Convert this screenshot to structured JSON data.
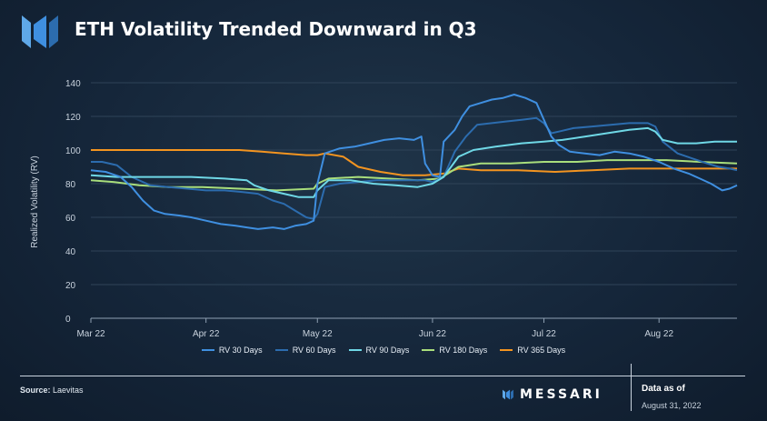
{
  "header": {
    "title": "ETH Volatility Trended Downward in Q3"
  },
  "footer": {
    "source_label": "Source:",
    "source_value": "Laevitas",
    "brand": "MESSARI",
    "asof_label": "Data as of",
    "asof_date": "August 31, 2022"
  },
  "colors": {
    "rv30": "#3f8fe0",
    "rv60": "#2c6cae",
    "rv90": "#6fd8e6",
    "rv180": "#a9de7c",
    "rv365": "#f39420"
  },
  "chart_data": {
    "type": "line",
    "ylabel": "Realized Volatility (RV)",
    "xlabel": "",
    "ylim": [
      0,
      140
    ],
    "yticks": [
      0,
      20,
      40,
      60,
      80,
      100,
      120,
      140
    ],
    "xlim": [
      "2022-03-01",
      "2022-08-22"
    ],
    "xticks": [
      {
        "date": "2022-03-01",
        "label": "Mar 22"
      },
      {
        "date": "2022-04-01",
        "label": "Apr 22"
      },
      {
        "date": "2022-05-01",
        "label": "May 22"
      },
      {
        "date": "2022-06-01",
        "label": "Jun 22"
      },
      {
        "date": "2022-07-01",
        "label": "Jul 22"
      },
      {
        "date": "2022-08-01",
        "label": "Aug 22"
      }
    ],
    "grid": true,
    "legend": "bottom",
    "series": [
      {
        "name": "RV 30 Days",
        "key": "rv30",
        "points": [
          [
            "2022-03-01",
            88
          ],
          [
            "2022-03-05",
            87
          ],
          [
            "2022-03-09",
            84
          ],
          [
            "2022-03-12",
            78
          ],
          [
            "2022-03-15",
            70
          ],
          [
            "2022-03-18",
            64
          ],
          [
            "2022-03-21",
            62
          ],
          [
            "2022-03-25",
            61
          ],
          [
            "2022-03-28",
            60
          ],
          [
            "2022-04-01",
            58
          ],
          [
            "2022-04-05",
            56
          ],
          [
            "2022-04-09",
            55
          ],
          [
            "2022-04-12",
            54
          ],
          [
            "2022-04-15",
            53
          ],
          [
            "2022-04-19",
            54
          ],
          [
            "2022-04-22",
            53
          ],
          [
            "2022-04-25",
            55
          ],
          [
            "2022-04-28",
            56
          ],
          [
            "2022-04-30",
            58
          ],
          [
            "2022-05-01",
            80
          ],
          [
            "2022-05-03",
            98
          ],
          [
            "2022-05-07",
            101
          ],
          [
            "2022-05-11",
            102
          ],
          [
            "2022-05-15",
            104
          ],
          [
            "2022-05-19",
            106
          ],
          [
            "2022-05-23",
            107
          ],
          [
            "2022-05-27",
            106
          ],
          [
            "2022-05-29",
            108
          ],
          [
            "2022-05-30",
            92
          ],
          [
            "2022-06-01",
            85
          ],
          [
            "2022-06-03",
            84
          ],
          [
            "2022-06-04",
            105
          ],
          [
            "2022-06-07",
            112
          ],
          [
            "2022-06-09",
            120
          ],
          [
            "2022-06-11",
            126
          ],
          [
            "2022-06-14",
            128
          ],
          [
            "2022-06-17",
            130
          ],
          [
            "2022-06-20",
            131
          ],
          [
            "2022-06-23",
            133
          ],
          [
            "2022-06-26",
            131
          ],
          [
            "2022-06-29",
            128
          ],
          [
            "2022-07-01",
            118
          ],
          [
            "2022-07-03",
            108
          ],
          [
            "2022-07-05",
            103
          ],
          [
            "2022-07-08",
            99
          ],
          [
            "2022-07-12",
            98
          ],
          [
            "2022-07-16",
            97
          ],
          [
            "2022-07-20",
            99
          ],
          [
            "2022-07-24",
            98
          ],
          [
            "2022-07-28",
            96
          ],
          [
            "2022-08-01",
            93
          ],
          [
            "2022-08-05",
            89
          ],
          [
            "2022-08-09",
            86
          ],
          [
            "2022-08-12",
            83
          ],
          [
            "2022-08-15",
            80
          ],
          [
            "2022-08-18",
            76
          ],
          [
            "2022-08-20",
            77
          ],
          [
            "2022-08-22",
            79
          ]
        ]
      },
      {
        "name": "RV 60 Days",
        "key": "rv60",
        "points": [
          [
            "2022-03-01",
            93
          ],
          [
            "2022-03-04",
            93
          ],
          [
            "2022-03-08",
            91
          ],
          [
            "2022-03-12",
            84
          ],
          [
            "2022-03-17",
            79
          ],
          [
            "2022-03-22",
            78
          ],
          [
            "2022-03-27",
            77
          ],
          [
            "2022-04-01",
            76
          ],
          [
            "2022-04-06",
            76
          ],
          [
            "2022-04-11",
            75
          ],
          [
            "2022-04-15",
            74
          ],
          [
            "2022-04-19",
            70
          ],
          [
            "2022-04-22",
            68
          ],
          [
            "2022-04-25",
            64
          ],
          [
            "2022-04-28",
            60
          ],
          [
            "2022-04-30",
            59
          ],
          [
            "2022-05-01",
            62
          ],
          [
            "2022-05-03",
            78
          ],
          [
            "2022-05-07",
            80
          ],
          [
            "2022-05-12",
            81
          ],
          [
            "2022-05-17",
            82
          ],
          [
            "2022-05-22",
            82
          ],
          [
            "2022-05-27",
            82
          ],
          [
            "2022-05-30",
            82
          ],
          [
            "2022-06-01",
            81
          ],
          [
            "2022-06-04",
            84
          ],
          [
            "2022-06-07",
            99
          ],
          [
            "2022-06-10",
            108
          ],
          [
            "2022-06-13",
            115
          ],
          [
            "2022-06-17",
            116
          ],
          [
            "2022-06-21",
            117
          ],
          [
            "2022-06-25",
            118
          ],
          [
            "2022-06-29",
            119
          ],
          [
            "2022-07-01",
            116
          ],
          [
            "2022-07-03",
            110
          ],
          [
            "2022-07-05",
            111
          ],
          [
            "2022-07-09",
            113
          ],
          [
            "2022-07-14",
            114
          ],
          [
            "2022-07-19",
            115
          ],
          [
            "2022-07-24",
            116
          ],
          [
            "2022-07-29",
            116
          ],
          [
            "2022-07-31",
            114
          ],
          [
            "2022-08-02",
            105
          ],
          [
            "2022-08-06",
            98
          ],
          [
            "2022-08-10",
            95
          ],
          [
            "2022-08-14",
            92
          ],
          [
            "2022-08-17",
            90
          ],
          [
            "2022-08-20",
            89
          ],
          [
            "2022-08-22",
            88
          ]
        ]
      },
      {
        "name": "RV 90 Days",
        "key": "rv90",
        "points": [
          [
            "2022-03-01",
            85
          ],
          [
            "2022-03-08",
            84
          ],
          [
            "2022-03-18",
            84
          ],
          [
            "2022-03-28",
            84
          ],
          [
            "2022-04-06",
            83
          ],
          [
            "2022-04-12",
            82
          ],
          [
            "2022-04-14",
            79
          ],
          [
            "2022-04-18",
            76
          ],
          [
            "2022-04-22",
            74
          ],
          [
            "2022-04-26",
            72
          ],
          [
            "2022-04-30",
            72
          ],
          [
            "2022-05-01",
            76
          ],
          [
            "2022-05-04",
            82
          ],
          [
            "2022-05-10",
            82
          ],
          [
            "2022-05-16",
            80
          ],
          [
            "2022-05-22",
            79
          ],
          [
            "2022-05-28",
            78
          ],
          [
            "2022-06-01",
            80
          ],
          [
            "2022-06-04",
            84
          ],
          [
            "2022-06-08",
            96
          ],
          [
            "2022-06-12",
            100
          ],
          [
            "2022-06-18",
            102
          ],
          [
            "2022-06-25",
            104
          ],
          [
            "2022-07-01",
            105
          ],
          [
            "2022-07-06",
            106
          ],
          [
            "2022-07-12",
            108
          ],
          [
            "2022-07-18",
            110
          ],
          [
            "2022-07-24",
            112
          ],
          [
            "2022-07-29",
            113
          ],
          [
            "2022-07-31",
            111
          ],
          [
            "2022-08-02",
            106
          ],
          [
            "2022-08-06",
            104
          ],
          [
            "2022-08-11",
            104
          ],
          [
            "2022-08-16",
            105
          ],
          [
            "2022-08-22",
            105
          ]
        ]
      },
      {
        "name": "RV 180 Days",
        "key": "rv180",
        "points": [
          [
            "2022-03-01",
            82
          ],
          [
            "2022-03-07",
            81
          ],
          [
            "2022-03-14",
            79
          ],
          [
            "2022-03-22",
            78
          ],
          [
            "2022-03-31",
            78
          ],
          [
            "2022-04-10",
            77
          ],
          [
            "2022-04-20",
            76
          ],
          [
            "2022-04-30",
            77
          ],
          [
            "2022-05-01",
            80
          ],
          [
            "2022-05-04",
            83
          ],
          [
            "2022-05-12",
            84
          ],
          [
            "2022-05-20",
            83
          ],
          [
            "2022-05-28",
            82
          ],
          [
            "2022-06-03",
            83
          ],
          [
            "2022-06-08",
            90
          ],
          [
            "2022-06-14",
            92
          ],
          [
            "2022-06-22",
            92
          ],
          [
            "2022-07-01",
            93
          ],
          [
            "2022-07-10",
            93
          ],
          [
            "2022-07-18",
            94
          ],
          [
            "2022-07-26",
            94
          ],
          [
            "2022-08-03",
            94
          ],
          [
            "2022-08-12",
            93
          ],
          [
            "2022-08-22",
            92
          ]
        ]
      },
      {
        "name": "RV 365 Days",
        "key": "rv365",
        "points": [
          [
            "2022-03-01",
            100
          ],
          [
            "2022-03-15",
            100
          ],
          [
            "2022-03-31",
            100
          ],
          [
            "2022-04-10",
            100
          ],
          [
            "2022-04-16",
            99
          ],
          [
            "2022-04-22",
            98
          ],
          [
            "2022-04-28",
            97
          ],
          [
            "2022-05-01",
            97
          ],
          [
            "2022-05-03",
            98
          ],
          [
            "2022-05-08",
            96
          ],
          [
            "2022-05-12",
            90
          ],
          [
            "2022-05-18",
            87
          ],
          [
            "2022-05-24",
            85
          ],
          [
            "2022-05-30",
            85
          ],
          [
            "2022-06-04",
            86
          ],
          [
            "2022-06-08",
            89
          ],
          [
            "2022-06-14",
            88
          ],
          [
            "2022-06-24",
            88
          ],
          [
            "2022-07-04",
            87
          ],
          [
            "2022-07-14",
            88
          ],
          [
            "2022-07-24",
            89
          ],
          [
            "2022-08-03",
            89
          ],
          [
            "2022-08-13",
            89
          ],
          [
            "2022-08-22",
            89
          ]
        ]
      }
    ]
  }
}
